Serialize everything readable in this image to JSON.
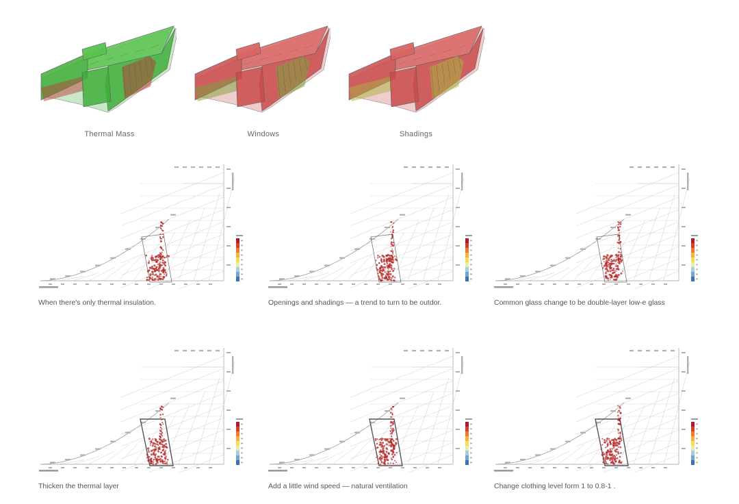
{
  "models": [
    {
      "caption": "Thermal Mass",
      "fill": "#3fae3a",
      "fill2": "#59c24f",
      "accent": "#b5443a"
    },
    {
      "caption": "Windows",
      "fill": "#c94b4b",
      "fill2": "#d86464",
      "accent": "#7aa23a"
    },
    {
      "caption": "Shadings",
      "fill": "#c94b4b",
      "fill2": "#d86464",
      "accent": "#a8b43c"
    }
  ],
  "psychrometric_charts": [
    {
      "caption": "When there's only thermal insulation.",
      "comfort_zone_emphasized": false
    },
    {
      "caption": "Openings and shadings — a trend to turn to be outdor.",
      "comfort_zone_emphasized": false
    },
    {
      "caption": "Common glass change to be double-layer low-e glass",
      "comfort_zone_emphasized": false
    },
    {
      "caption": "Thicken the thermal layer",
      "comfort_zone_emphasized": true
    },
    {
      "caption": "Add a little wind speed — natural ventilation",
      "comfort_zone_emphasized": true
    },
    {
      "caption": "Change clothing level form 1 to 0.8-1 .",
      "comfort_zone_emphasized": true
    }
  ],
  "colors": {
    "grid": "#c8c8c8",
    "points": "#b42828",
    "legend_scale": [
      "#b2182b",
      "#d6402a",
      "#ef7a2c",
      "#f7b23a",
      "#f6dc5a",
      "#e9ecb0",
      "#a9cde0",
      "#6fa5cf",
      "#3f6fb5"
    ]
  }
}
